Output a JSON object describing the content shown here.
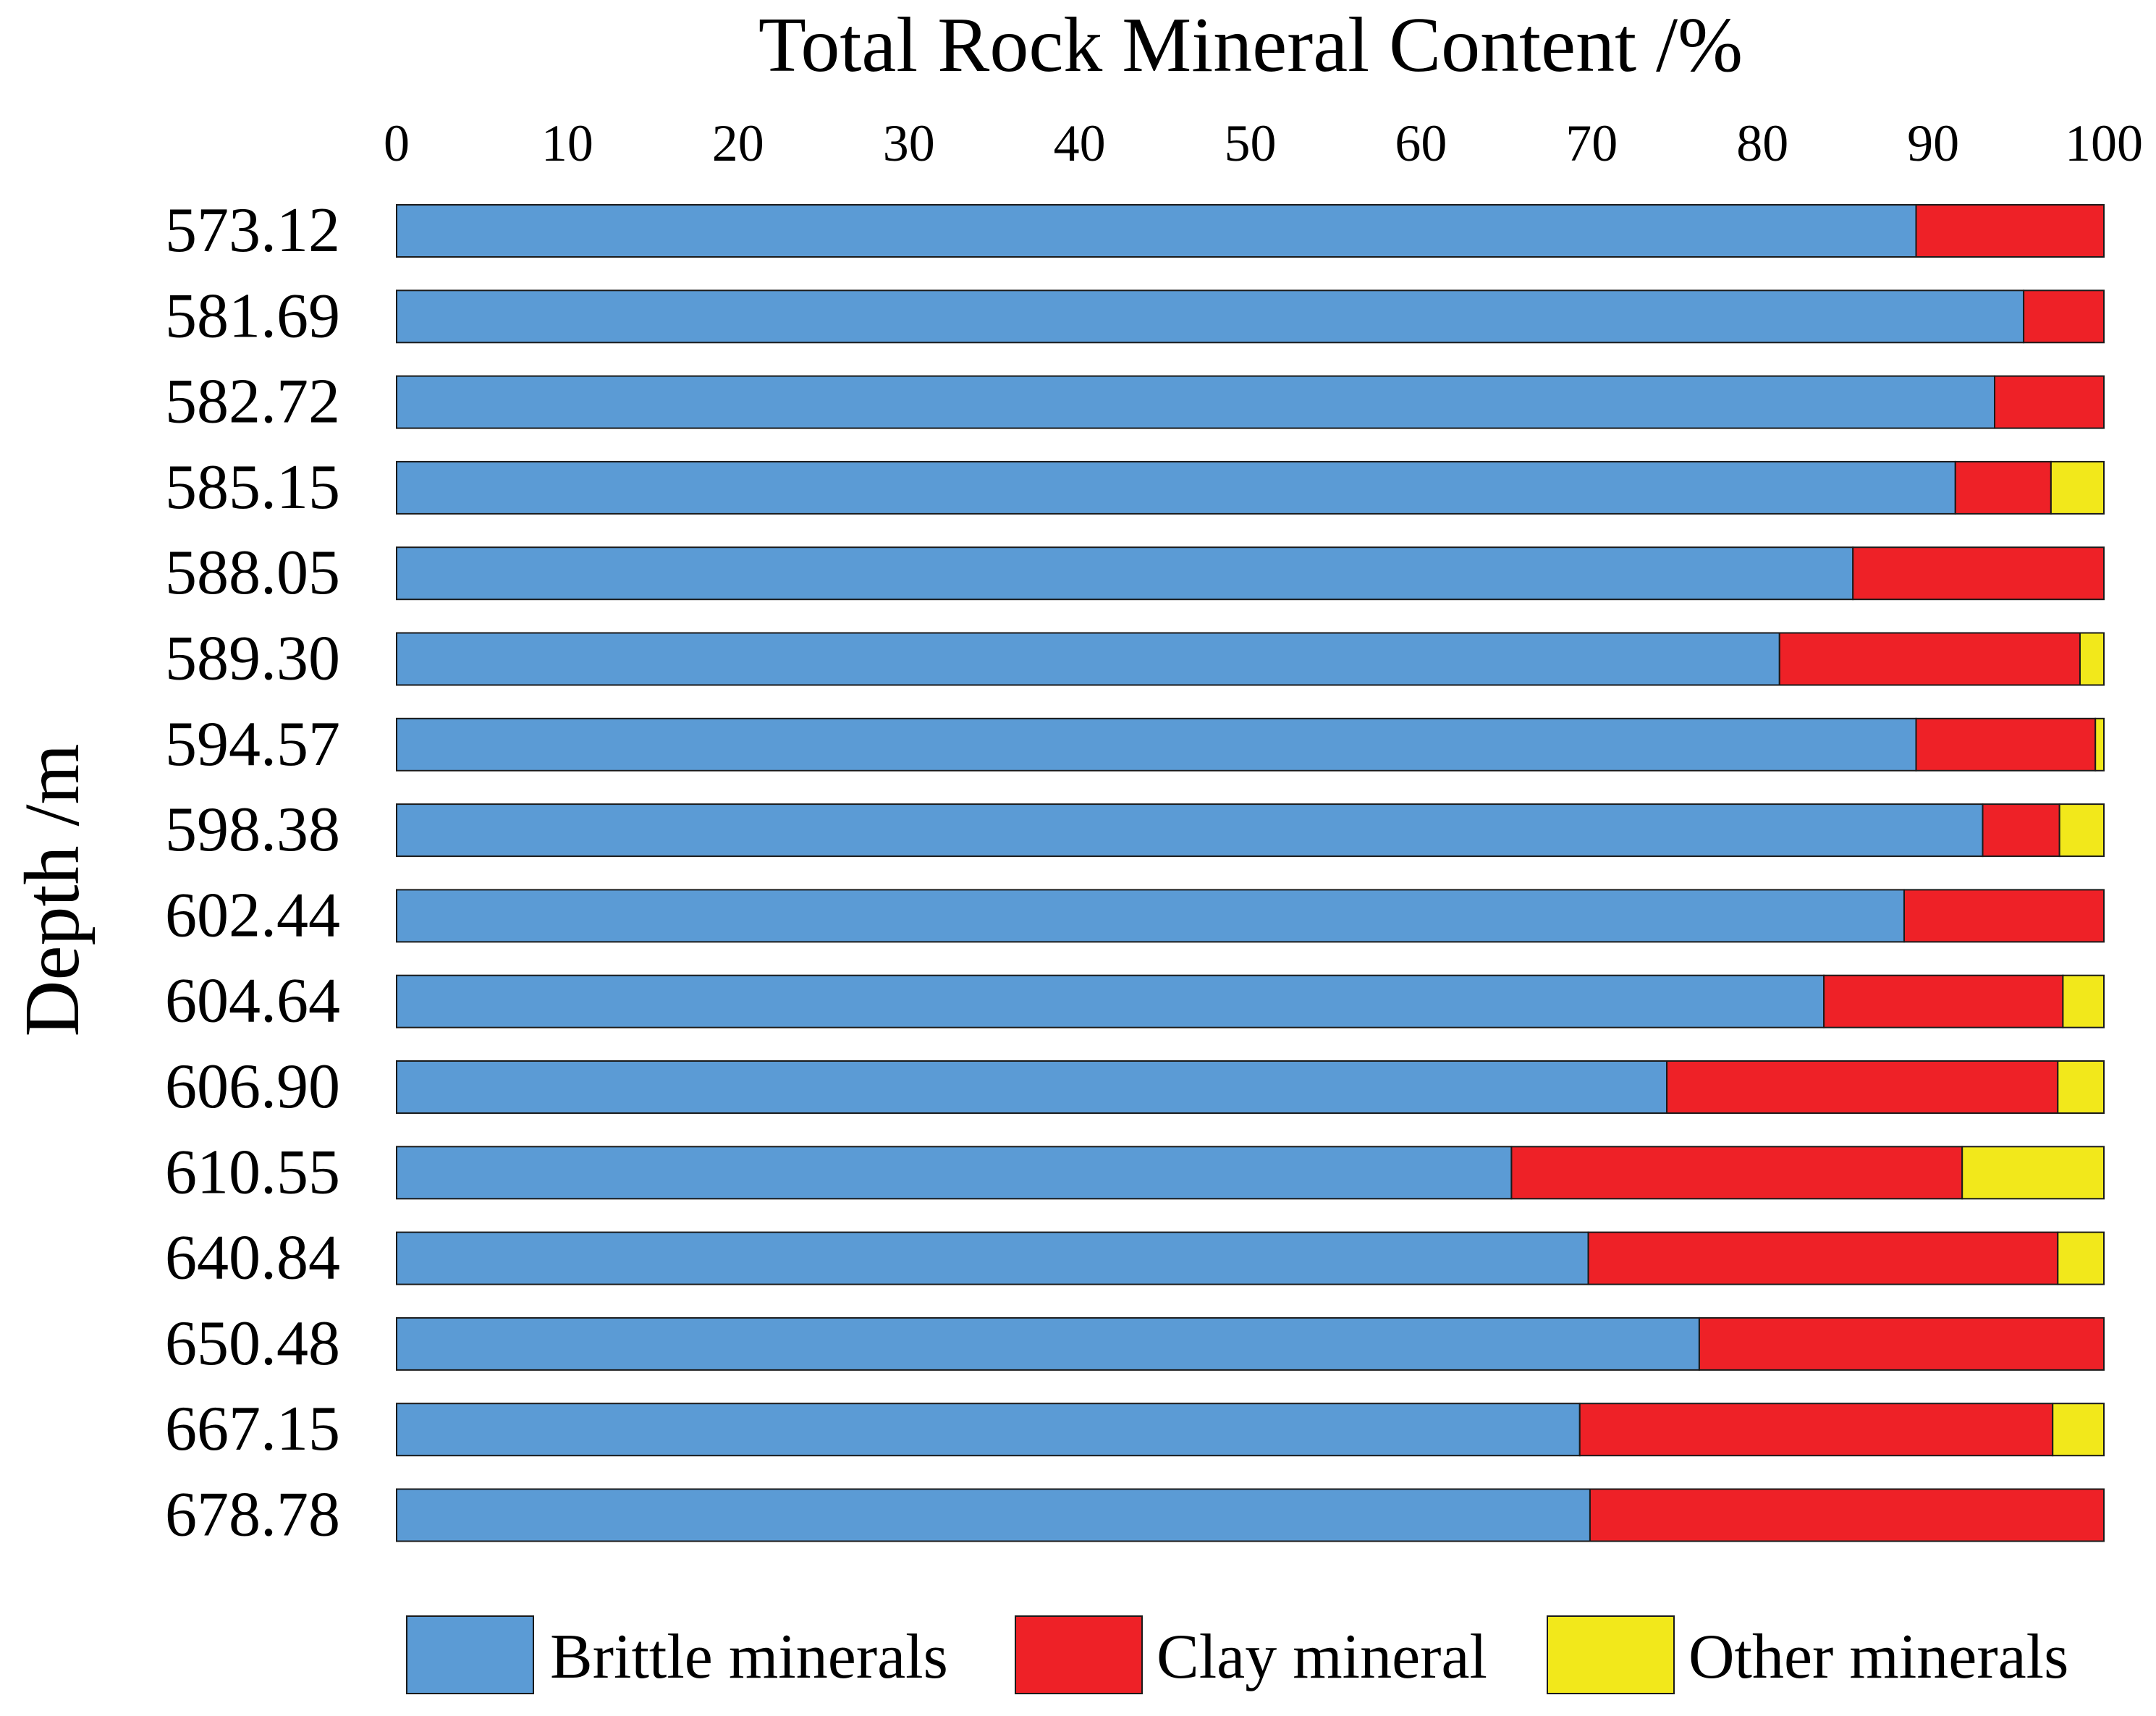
{
  "chart_data": {
    "type": "bar",
    "orientation": "horizontal",
    "stacked": true,
    "title": "Total Rock Mineral Content /%",
    "xlabel": "Total Rock Mineral Content /%",
    "ylabel": "Depth /m",
    "xlim": [
      0,
      100
    ],
    "xticks": [
      "0",
      "10",
      "20",
      "30",
      "40",
      "50",
      "60",
      "70",
      "80",
      "90",
      "100"
    ],
    "categories": [
      "573.12",
      "581.69",
      "582.72",
      "585.15",
      "588.05",
      "589.30",
      "594.57",
      "598.38",
      "602.44",
      "604.64",
      "606.90",
      "610.55",
      "640.84",
      "650.48",
      "667.15",
      "678.78"
    ],
    "series": [
      {
        "name": "Brittle minerals",
        "color": "#5b9bd5",
        "values": [
          89.0,
          95.3,
          93.6,
          91.3,
          85.3,
          81.0,
          89.0,
          92.9,
          88.3,
          83.6,
          74.4,
          65.3,
          69.8,
          76.3,
          69.3,
          69.9
        ]
      },
      {
        "name": "Clay mineral",
        "color": "#ee2127",
        "values": [
          11.0,
          4.7,
          6.4,
          5.6,
          14.7,
          17.6,
          10.5,
          4.5,
          11.7,
          14.0,
          22.9,
          26.4,
          27.5,
          23.7,
          27.7,
          30.1
        ]
      },
      {
        "name": "Other minerals",
        "color": "#f2e81b",
        "values": [
          0,
          0,
          0,
          3.1,
          0,
          1.4,
          0.5,
          2.6,
          0,
          2.4,
          2.7,
          8.3,
          2.7,
          0,
          3.0,
          0
        ]
      }
    ],
    "legend_position": "bottom",
    "grid": false
  }
}
